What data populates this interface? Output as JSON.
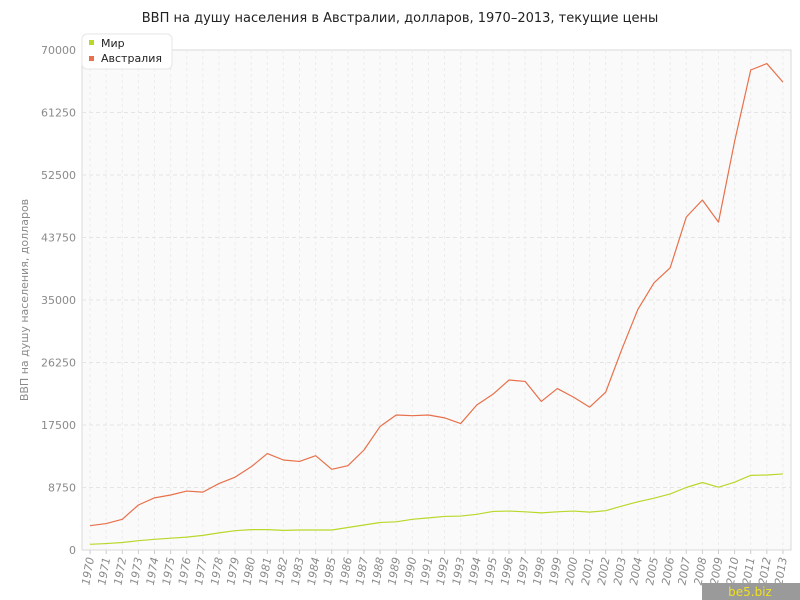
{
  "chart_data": {
    "type": "line",
    "title": "ВВП на душу населения в Австралии, долларов, 1970–2013, текущие цены",
    "xlabel": "",
    "ylabel": "ВВП на душу населения, долларов",
    "x": [
      "1970",
      "1971",
      "1972",
      "1973",
      "1974",
      "1975",
      "1976",
      "1977",
      "1978",
      "1979",
      "1980",
      "1981",
      "1982",
      "1983",
      "1984",
      "1985",
      "1986",
      "1987",
      "1988",
      "1989",
      "1990",
      "1991",
      "1992",
      "1993",
      "1994",
      "1995",
      "1996",
      "1997",
      "1998",
      "1999",
      "2000",
      "2001",
      "2002",
      "2003",
      "2004",
      "2005",
      "2006",
      "2007",
      "2008",
      "2009",
      "2010",
      "2011",
      "2012",
      "2013"
    ],
    "yticks": [
      "0",
      "8750",
      "17500",
      "26250",
      "35000",
      "43750",
      "52500",
      "61250",
      "70000"
    ],
    "ylim": [
      0,
      70000
    ],
    "grid": true,
    "legend": "top-left",
    "series": [
      {
        "name": "Мир",
        "color": "#b8d82a",
        "values": [
          800,
          900,
          1050,
          1300,
          1500,
          1650,
          1800,
          2050,
          2400,
          2700,
          2850,
          2850,
          2750,
          2800,
          2800,
          2800,
          3150,
          3500,
          3850,
          3950,
          4300,
          4500,
          4700,
          4750,
          5000,
          5400,
          5450,
          5350,
          5200,
          5350,
          5450,
          5300,
          5500,
          6150,
          6750,
          7250,
          7850,
          8750,
          9450,
          8800,
          9500,
          10450,
          10500,
          10650
        ]
      },
      {
        "name": "Австралия",
        "color": "#e8704a",
        "values": [
          3400,
          3700,
          4300,
          6300,
          7300,
          7700,
          8250,
          8100,
          9300,
          10200,
          11650,
          13500,
          12600,
          12400,
          13200,
          11300,
          11800,
          14000,
          17300,
          18900,
          18800,
          18900,
          18500,
          17700,
          20300,
          21800,
          23800,
          23600,
          20800,
          22600,
          21400,
          20000,
          22100,
          28100,
          33700,
          37400,
          39500,
          46600,
          49000,
          45900,
          57200,
          67200,
          68100,
          65500
        ]
      }
    ]
  },
  "watermark": "be5.biz"
}
